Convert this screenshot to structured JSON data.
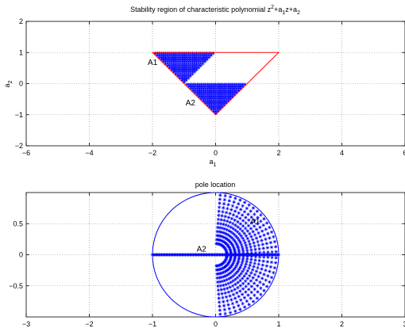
{
  "chart_data": [
    {
      "type": "scatter",
      "title": {
        "main": "Stability region of characteristic polynomial z",
        "sup1": "2",
        "mid1": "+a",
        "sub1": "1",
        "mid2": "z+a",
        "sub2": "2"
      },
      "xlabel": {
        "base": "a",
        "sub": "1"
      },
      "ylabel": {
        "base": "a",
        "sub": "2"
      },
      "xlim": [
        -6,
        6
      ],
      "ylim": [
        -2,
        2
      ],
      "xticks": [
        -6,
        -4,
        -2,
        0,
        2,
        4,
        6
      ],
      "yticks": [
        -2,
        -1,
        0,
        1,
        2
      ],
      "xtick_labels": [
        "−6",
        "−4",
        "−2",
        "0",
        "2",
        "4",
        "6"
      ],
      "ytick_labels": [
        "−2",
        "−1",
        "0",
        "1",
        "2"
      ],
      "grid": true,
      "stability_triangle": {
        "color": "#ff0000",
        "vertices": [
          [
            -2,
            1
          ],
          [
            2,
            1
          ],
          [
            0,
            -1
          ]
        ]
      },
      "regions": [
        {
          "name": "A1",
          "color": "#0000ff",
          "marker": "*",
          "polygon": [
            [
              -2,
              1
            ],
            [
              0,
              1
            ],
            [
              -1,
              0
            ]
          ]
        },
        {
          "name": "A2",
          "color": "#0000ff",
          "marker": "*",
          "polygon": [
            [
              -1,
              0
            ],
            [
              1,
              0
            ],
            [
              0,
              -1
            ]
          ]
        }
      ],
      "annotations": [
        {
          "text": "A1",
          "x": -2.15,
          "y": 0.7
        },
        {
          "text": "A2",
          "x": -0.95,
          "y": -0.6
        }
      ]
    },
    {
      "type": "scatter",
      "title": "pole location",
      "xlabel": "",
      "ylabel": "",
      "xlim": [
        -3,
        3
      ],
      "ylim": [
        -1,
        1
      ],
      "xticks": [
        -3,
        -2,
        -1,
        0,
        1,
        2,
        3
      ],
      "yticks": [
        -0.5,
        0,
        0.5
      ],
      "xtick_labels": [
        "−3",
        "−2",
        "−1",
        "0",
        "1",
        "2",
        "3"
      ],
      "ytick_labels": [
        "−0.5",
        "0",
        "0.5"
      ],
      "grid": true,
      "unit_circle": {
        "center": [
          0,
          0
        ],
        "radius": 1,
        "color": "#0000ff"
      },
      "pole_sets": [
        {
          "name": "A1",
          "color": "#0000ff",
          "marker": "*",
          "description": "complex conjugate poles, Re(z) between 0 and 1, |z| up to 1"
        },
        {
          "name": "A2",
          "color": "#0000ff",
          "marker": "*",
          "description": "real poles on the interval -1 to 1"
        }
      ],
      "annotations": [
        {
          "text": "A1",
          "x": 0.55,
          "y": 0.55
        },
        {
          "text": "A2",
          "x": -0.3,
          "y": 0.05
        }
      ]
    }
  ]
}
